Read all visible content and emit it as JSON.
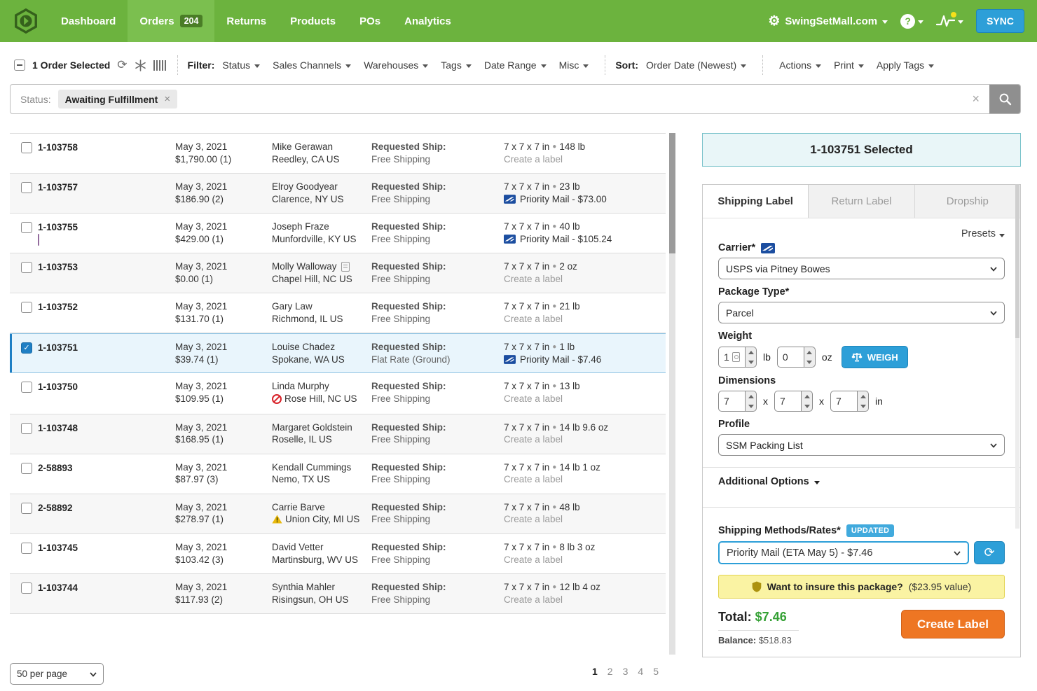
{
  "nav": {
    "items": [
      {
        "label": "Dashboard",
        "active": false,
        "badge": null
      },
      {
        "label": "Orders",
        "active": true,
        "badge": "204"
      },
      {
        "label": "Returns",
        "active": false,
        "badge": null
      },
      {
        "label": "Products",
        "active": false,
        "badge": null
      },
      {
        "label": "POs",
        "active": false,
        "badge": null
      },
      {
        "label": "Analytics",
        "active": false,
        "badge": null
      }
    ],
    "store_name": "SwingSetMall.com",
    "help_glyph": "?",
    "sync_label": "SYNC"
  },
  "toolbar": {
    "selected_text": "1 Order Selected",
    "filter_label": "Filter:",
    "filters": [
      "Status",
      "Sales Channels",
      "Warehouses",
      "Tags",
      "Date Range",
      "Misc"
    ],
    "sort_label": "Sort:",
    "sort_value": "Order Date (Newest)",
    "actions": [
      "Actions",
      "Print",
      "Apply Tags"
    ]
  },
  "search": {
    "field_label": "Status:",
    "chip_label": "Awaiting Fulfillment",
    "chip_remove_glyph": "×",
    "clear_glyph": "×"
  },
  "table": {
    "requested_ship_label": "Requested Ship:",
    "create_label_text": "Create a label"
  },
  "orders": [
    {
      "id": "1-103758",
      "date": "May 3, 2021",
      "amount": "$1,790.00 (1)",
      "name": "Mike Gerawan",
      "city": "Reedley, CA US",
      "ship_method": "Free Shipping",
      "dims": "7 x 7 x 7 in",
      "weight": "148 lb",
      "rate_type": "create",
      "rate_text": "Create a label",
      "selected": false,
      "tag_color": null,
      "name_icon": null,
      "city_icon": null
    },
    {
      "id": "1-103757",
      "date": "May 3, 2021",
      "amount": "$186.90 (2)",
      "name": "Elroy Goodyear",
      "city": "Clarence, NY US",
      "ship_method": "Free Shipping",
      "dims": "7 x 7 x 7 in",
      "weight": "23 lb",
      "rate_type": "usps",
      "rate_text": "Priority Mail - $73.00",
      "selected": false,
      "tag_color": null,
      "name_icon": null,
      "city_icon": null
    },
    {
      "id": "1-103755",
      "date": "May 3, 2021",
      "amount": "$429.00 (1)",
      "name": "Joseph Fraze",
      "city": "Munfordville, KY US",
      "ship_method": "Free Shipping",
      "dims": "7 x 7 x 7 in",
      "weight": "40 lb",
      "rate_type": "usps",
      "rate_text": "Priority Mail - $105.24",
      "selected": false,
      "tag_color": "#c58fd2",
      "name_icon": null,
      "city_icon": null
    },
    {
      "id": "1-103753",
      "date": "May 3, 2021",
      "amount": "$0.00 (1)",
      "name": "Molly Walloway",
      "city": "Chapel Hill, NC US",
      "ship_method": "Free Shipping",
      "dims": "7 x 7 x 7 in",
      "weight": "2 oz",
      "rate_type": "create",
      "rate_text": "Create a label",
      "selected": false,
      "tag_color": null,
      "name_icon": "note-icon",
      "city_icon": null
    },
    {
      "id": "1-103752",
      "date": "May 3, 2021",
      "amount": "$131.70 (1)",
      "name": "Gary Law",
      "city": "Richmond, IL US",
      "ship_method": "Free Shipping",
      "dims": "7 x 7 x 7 in",
      "weight": "21 lb",
      "rate_type": "create",
      "rate_text": "Create a label",
      "selected": false,
      "tag_color": null,
      "name_icon": null,
      "city_icon": null
    },
    {
      "id": "1-103751",
      "date": "May 3, 2021",
      "amount": "$39.74 (1)",
      "name": "Louise Chadez",
      "city": "Spokane, WA US",
      "ship_method": "Flat Rate (Ground)",
      "dims": "7 x 7 x 7 in",
      "weight": "1 lb",
      "rate_type": "usps",
      "rate_text": "Priority Mail - $7.46",
      "selected": true,
      "tag_color": null,
      "name_icon": null,
      "city_icon": null
    },
    {
      "id": "1-103750",
      "date": "May 3, 2021",
      "amount": "$109.95 (1)",
      "name": "Linda Murphy",
      "city": "Rose Hill, NC US",
      "ship_method": "Free Shipping",
      "dims": "7 x 7 x 7 in",
      "weight": "13 lb",
      "rate_type": "create",
      "rate_text": "Create a label",
      "selected": false,
      "tag_color": null,
      "name_icon": null,
      "city_icon": "blocked-icon"
    },
    {
      "id": "1-103748",
      "date": "May 3, 2021",
      "amount": "$168.95 (1)",
      "name": "Margaret Goldstein",
      "city": "Roselle, IL US",
      "ship_method": "Free Shipping",
      "dims": "7 x 7 x 7 in",
      "weight": "14 lb 9.6 oz",
      "rate_type": "create",
      "rate_text": "Create a label",
      "selected": false,
      "tag_color": null,
      "name_icon": null,
      "city_icon": null
    },
    {
      "id": "2-58893",
      "date": "May 3, 2021",
      "amount": "$87.97 (3)",
      "name": "Kendall Cummings",
      "city": "Nemo, TX US",
      "ship_method": "Free Shipping",
      "dims": "7 x 7 x 7 in",
      "weight": "14 lb 1 oz",
      "rate_type": "create",
      "rate_text": "Create a label",
      "selected": false,
      "tag_color": null,
      "name_icon": null,
      "city_icon": null
    },
    {
      "id": "2-58892",
      "date": "May 3, 2021",
      "amount": "$278.97 (1)",
      "name": "Carrie Barve",
      "city": "Union City, MI US",
      "ship_method": "Free Shipping",
      "dims": "7 x 7 x 7 in",
      "weight": "48 lb",
      "rate_type": "create",
      "rate_text": "Create a label",
      "selected": false,
      "tag_color": null,
      "name_icon": null,
      "city_icon": "warning-icon"
    },
    {
      "id": "1-103745",
      "date": "May 3, 2021",
      "amount": "$103.42 (3)",
      "name": "David Vetter",
      "city": "Martinsburg, WV US",
      "ship_method": "Free Shipping",
      "dims": "7 x 7 x 7 in",
      "weight": "8 lb 3 oz",
      "rate_type": "create",
      "rate_text": "Create a label",
      "selected": false,
      "tag_color": null,
      "name_icon": null,
      "city_icon": null
    },
    {
      "id": "1-103744",
      "date": "May 3, 2021",
      "amount": "$117.93 (2)",
      "name": "Synthia Mahler",
      "city": "Risingsun, OH US",
      "ship_method": "Free Shipping",
      "dims": "7 x 7 x 7 in",
      "weight": "12 lb 4 oz",
      "rate_type": "create",
      "rate_text": "Create a label",
      "selected": false,
      "tag_color": null,
      "name_icon": null,
      "city_icon": null
    }
  ],
  "detail": {
    "selected_title": "1-103751 Selected",
    "tabs": [
      {
        "label": "Shipping Label",
        "active": true
      },
      {
        "label": "Return Label",
        "active": false
      },
      {
        "label": "Dropship",
        "active": false
      }
    ],
    "presets_label": "Presets",
    "carrier_label": "Carrier*",
    "carrier_value": "USPS via Pitney Bowes",
    "package_label": "Package Type*",
    "package_value": "Parcel",
    "weight_label": "Weight",
    "weight_lb": "1",
    "weight_lb_unit": "lb",
    "weight_oz": "0",
    "weight_oz_unit": "oz",
    "weigh_button": "WEIGH",
    "dimensions_label": "Dimensions",
    "dim_l": "7",
    "dim_w": "7",
    "dim_h": "7",
    "dim_sep": "x",
    "dim_unit": "in",
    "profile_label": "Profile",
    "profile_value": "SSM Packing List",
    "additional_options_label": "Additional Options",
    "rates_label": "Shipping Methods/Rates*",
    "updated_badge": "UPDATED",
    "rate_value": "Priority Mail (ETA May 5) - $7.46",
    "insure_bold": "Want to insure this package?",
    "insure_rest": "($23.95 value)",
    "total_label": "Total:",
    "total_value": "$7.46",
    "balance_label": "Balance:",
    "balance_value": "$518.83",
    "create_button": "Create Label"
  },
  "pagination": {
    "per_page": "50 per page",
    "pages": [
      "1",
      "2",
      "3",
      "4",
      "5"
    ],
    "current": "1"
  },
  "colors": {
    "nav_green": "#6cb33e",
    "nav_active_green": "#7bbf4f",
    "badge_green": "#4a7d26",
    "sync_blue": "#2d9fd8",
    "selected_row_blue": "#e9f5fc",
    "accent_blue": "#1f7fc4",
    "usps_blue": "#1c4ea0",
    "orange": "#ee7623",
    "total_green": "#35a135",
    "insure_yellow": "#faf3a3",
    "tag_purple": "#c58fd2"
  }
}
